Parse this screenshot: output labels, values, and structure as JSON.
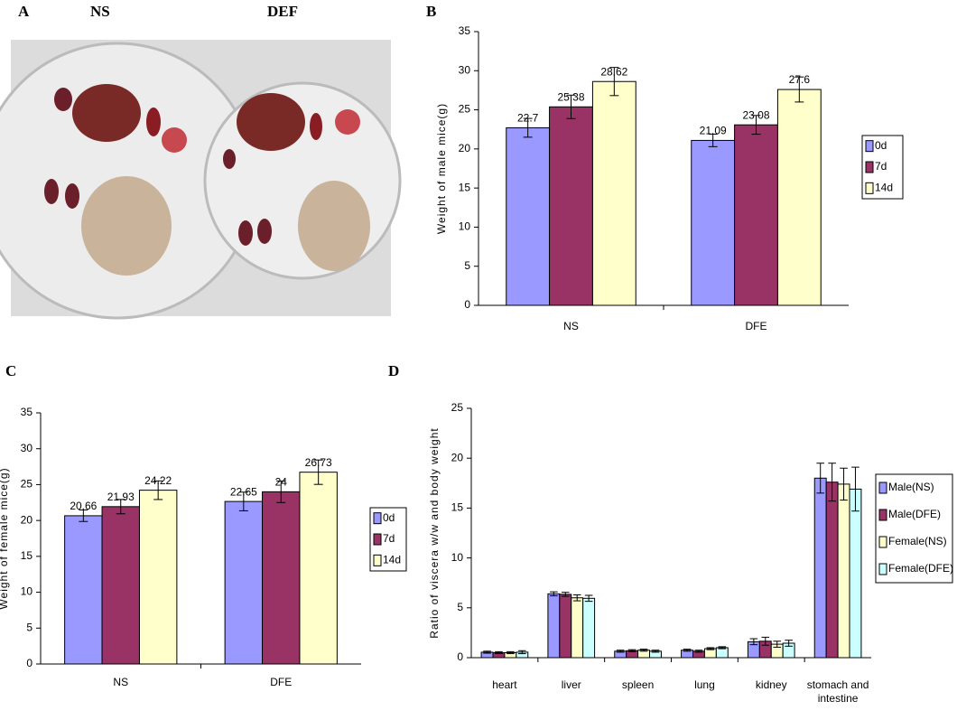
{
  "figure": {
    "panel_labels": [
      "A",
      "B",
      "C",
      "D"
    ],
    "photo_labels": [
      "NS",
      "DEF"
    ]
  },
  "chart_data": [
    {
      "type": "bar",
      "y_label": "Weight  of  male mice(g)",
      "categories": [
        "NS",
        "DFE"
      ],
      "series": [
        {
          "name": "0d",
          "color": "#9999ff",
          "values": [
            22.7,
            21.09
          ],
          "errors": [
            1.2,
            0.8
          ]
        },
        {
          "name": "7d",
          "color": "#993366",
          "values": [
            25.38,
            23.08
          ],
          "errors": [
            1.5,
            1.2
          ]
        },
        {
          "name": "14d",
          "color": "#ffffcc",
          "values": [
            28.62,
            27.6
          ],
          "errors": [
            1.8,
            1.6
          ]
        }
      ],
      "ylim": [
        0,
        35
      ],
      "yticks": [
        0,
        5,
        10,
        15,
        20,
        25,
        30,
        35
      ],
      "legend": "right",
      "value_labels_shown": true
    },
    {
      "type": "bar",
      "y_label": "Weight  of  female mice(g)",
      "categories": [
        "NS",
        "DFE"
      ],
      "series": [
        {
          "name": "0d",
          "color": "#9999ff",
          "values": [
            20.66,
            22.65
          ],
          "errors": [
            0.8,
            1.3
          ]
        },
        {
          "name": "7d",
          "color": "#993366",
          "values": [
            21.93,
            24
          ],
          "errors": [
            1.0,
            1.5
          ]
        },
        {
          "name": "14d",
          "color": "#ffffcc",
          "values": [
            24.22,
            26.73
          ],
          "errors": [
            1.3,
            1.7
          ]
        }
      ],
      "ylim": [
        0,
        35
      ],
      "yticks": [
        0,
        5,
        10,
        15,
        20,
        25,
        30,
        35
      ],
      "legend": "right",
      "value_labels_shown": true
    },
    {
      "type": "bar",
      "y_label": "Ratio of viscera w/w and body weight",
      "categories": [
        "heart",
        "liver",
        "spleen",
        "lung",
        "kidney",
        "stomach and intestine"
      ],
      "series": [
        {
          "name": "Male(NS)",
          "color": "#9999ff",
          "values": [
            0.55,
            6.4,
            0.65,
            0.75,
            1.6,
            18.0
          ],
          "errors": [
            0.1,
            0.2,
            0.1,
            0.1,
            0.3,
            1.5
          ]
        },
        {
          "name": "Male(DFE)",
          "color": "#993366",
          "values": [
            0.5,
            6.35,
            0.7,
            0.65,
            1.65,
            17.6
          ],
          "errors": [
            0.1,
            0.2,
            0.1,
            0.1,
            0.4,
            1.9
          ]
        },
        {
          "name": "Female(NS)",
          "color": "#ffffcc",
          "values": [
            0.5,
            6.0,
            0.75,
            0.9,
            1.35,
            17.4
          ],
          "errors": [
            0.1,
            0.3,
            0.1,
            0.1,
            0.3,
            1.6
          ]
        },
        {
          "name": "Female(DFE)",
          "color": "#ccffff",
          "values": [
            0.55,
            5.95,
            0.65,
            1.0,
            1.45,
            16.9
          ],
          "errors": [
            0.15,
            0.3,
            0.1,
            0.1,
            0.3,
            2.2
          ]
        }
      ],
      "ylim": [
        0,
        25
      ],
      "yticks": [
        0,
        5,
        10,
        15,
        20,
        25
      ],
      "legend": "right",
      "value_labels_shown": false
    }
  ]
}
